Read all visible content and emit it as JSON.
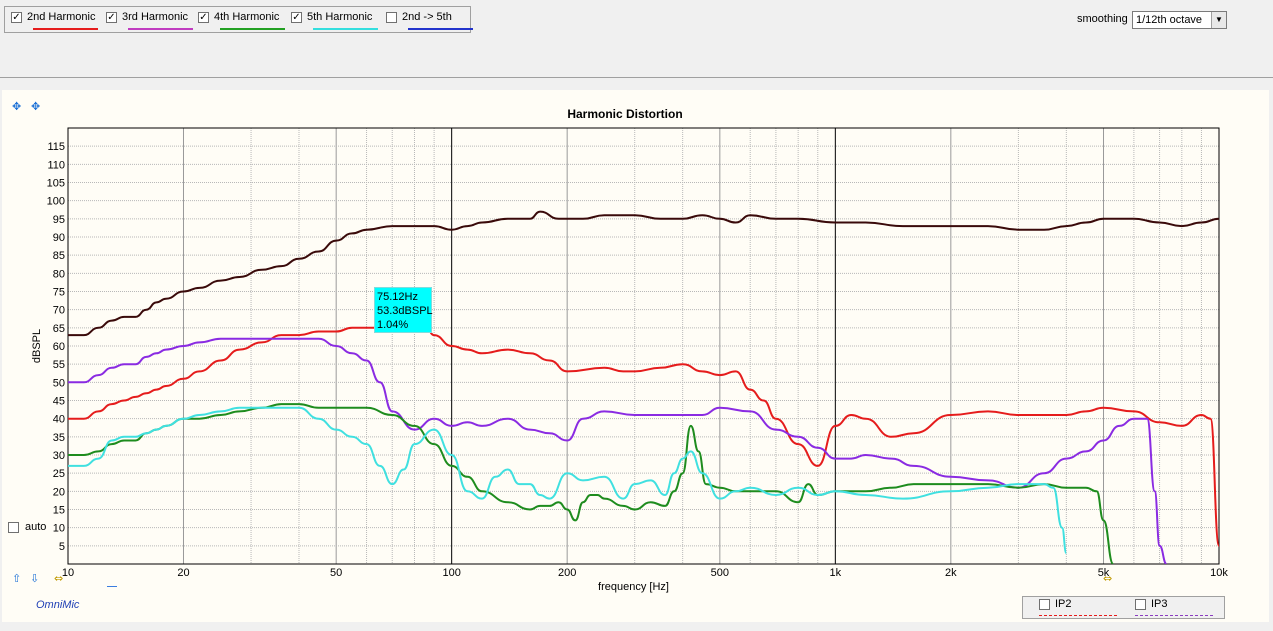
{
  "legend": [
    {
      "label": "2nd Harmonic",
      "checked": true,
      "color": "#e51c1c"
    },
    {
      "label": "3rd Harmonic",
      "checked": true,
      "color": "#c03cc0"
    },
    {
      "label": "4th Harmonic",
      "checked": true,
      "color": "#22a022"
    },
    {
      "label": "5th Harmonic",
      "checked": true,
      "color": "#33dede"
    },
    {
      "label": "2nd -> 5th",
      "checked": false,
      "color": "#2233cc"
    }
  ],
  "smoothing": {
    "label": "smoothing",
    "value": "1/12th octave"
  },
  "auto": {
    "label": "auto",
    "checked": false
  },
  "brand": "OmniMic",
  "ip": [
    {
      "label": "IP2",
      "checked": false,
      "color": "#e51c1c"
    },
    {
      "label": "IP3",
      "checked": false,
      "color": "#8a3cc0"
    }
  ],
  "tooltip": {
    "freq": "75.12Hz",
    "level": "53.3dBSPL",
    "pct": "1.04%"
  },
  "icons": {
    "top_left": [
      "expand-icon",
      "fit-icon"
    ],
    "bottom_left": [
      "up-arrow-icon",
      "down-arrow-icon",
      "left-right-icon"
    ],
    "bottom_right": "left-right-icon"
  },
  "chart_data": {
    "type": "line",
    "title": "Harmonic Distortion",
    "xlabel": "frequency [Hz]",
    "ylabel": "dBSPL",
    "xscale": "log",
    "xlim": [
      10,
      10000
    ],
    "ylim": [
      0,
      120
    ],
    "xticks": [
      {
        "v": 10,
        "t": "10"
      },
      {
        "v": 20,
        "t": "20"
      },
      {
        "v": 50,
        "t": "50"
      },
      {
        "v": 100,
        "t": "100"
      },
      {
        "v": 200,
        "t": "200"
      },
      {
        "v": 500,
        "t": "500"
      },
      {
        "v": 1000,
        "t": "1k"
      },
      {
        "v": 2000,
        "t": "2k"
      },
      {
        "v": 5000,
        "t": "5k"
      },
      {
        "v": 10000,
        "t": "10k"
      }
    ],
    "yticks": [
      5,
      10,
      15,
      20,
      25,
      30,
      35,
      40,
      45,
      50,
      55,
      60,
      65,
      70,
      75,
      80,
      85,
      90,
      95,
      100,
      105,
      110,
      115
    ],
    "grid": true,
    "series": [
      {
        "key": "fundamental",
        "color": "#3a0a0a",
        "x": [
          10,
          11,
          12,
          13,
          14,
          15,
          16,
          17,
          18,
          20,
          22,
          25,
          28,
          32,
          36,
          40,
          45,
          50,
          55,
          60,
          70,
          80,
          90,
          100,
          110,
          120,
          140,
          160,
          170,
          190,
          200,
          220,
          250,
          280,
          300,
          350,
          400,
          450,
          500,
          550,
          600,
          700,
          800,
          1000,
          1200,
          1500,
          2000,
          2500,
          3000,
          3500,
          4000,
          4500,
          5000,
          6000,
          7000,
          8000,
          9000,
          10000
        ],
        "y": [
          63,
          63,
          65,
          67,
          68,
          68,
          70,
          72,
          73,
          75,
          76,
          78,
          79,
          81,
          82,
          84,
          86,
          89,
          91,
          92,
          93,
          93,
          93,
          92,
          93,
          94,
          95,
          95,
          97,
          95,
          95,
          95,
          96,
          96,
          96,
          95,
          95,
          96,
          95,
          94,
          96,
          95,
          95,
          94,
          94,
          93,
          93,
          93,
          92,
          92,
          93,
          94,
          95,
          95,
          94,
          93,
          94,
          95
        ]
      },
      {
        "key": "h2",
        "color": "#e51c1c",
        "x": [
          10,
          11,
          12,
          13,
          14,
          15,
          16,
          17,
          18,
          20,
          22,
          25,
          28,
          32,
          36,
          40,
          45,
          50,
          55,
          60,
          70,
          80,
          85,
          90,
          100,
          110,
          120,
          140,
          160,
          180,
          200,
          250,
          280,
          300,
          350,
          400,
          450,
          500,
          550,
          600,
          650,
          700,
          800,
          900,
          1000,
          1100,
          1200,
          1400,
          1600,
          2000,
          2500,
          3000,
          3500,
          4000,
          4500,
          5000,
          6000,
          7000,
          8000,
          9000,
          9500,
          10000
        ],
        "y": [
          40,
          40,
          42,
          44,
          45,
          46,
          47,
          48,
          49,
          51,
          53,
          56,
          59,
          61,
          63,
          63,
          64,
          64,
          65,
          65,
          65,
          64,
          66,
          63,
          60,
          59,
          58,
          59,
          58,
          56,
          53,
          54,
          53,
          53,
          54,
          55,
          53,
          52,
          53,
          48,
          45,
          40,
          33,
          27,
          38,
          41,
          40,
          35,
          36,
          41,
          42,
          41,
          41,
          41,
          42,
          43,
          42,
          39,
          38,
          41,
          40,
          5
        ]
      },
      {
        "key": "h3",
        "color": "#8a2be2",
        "x": [
          10,
          11,
          12,
          13,
          14,
          15,
          16,
          17,
          18,
          20,
          22,
          25,
          28,
          32,
          36,
          40,
          45,
          50,
          55,
          60,
          65,
          70,
          80,
          90,
          100,
          110,
          120,
          140,
          160,
          180,
          200,
          220,
          250,
          300,
          350,
          400,
          450,
          500,
          600,
          700,
          800,
          900,
          1000,
          1100,
          1200,
          1400,
          1600,
          2000,
          2500,
          3000,
          3500,
          4000,
          4500,
          5000,
          5500,
          6000,
          6500,
          6800,
          7000,
          7300
        ],
        "y": [
          50,
          50,
          52,
          54,
          55,
          55,
          57,
          58,
          59,
          60,
          61,
          62,
          62,
          62,
          62,
          62,
          62,
          60,
          58,
          56,
          50,
          42,
          37,
          40,
          38,
          39,
          38,
          40,
          37,
          36,
          34,
          40,
          42,
          41,
          41,
          41,
          41,
          43,
          42,
          37,
          35,
          32,
          29,
          29,
          30,
          29,
          27,
          24,
          23,
          21,
          25,
          29,
          31,
          34,
          38,
          40,
          40,
          20,
          5,
          0
        ]
      },
      {
        "key": "h4",
        "color": "#1e8c1e",
        "x": [
          10,
          11,
          12,
          13,
          14,
          15,
          16,
          17,
          18,
          20,
          22,
          25,
          28,
          32,
          36,
          40,
          45,
          50,
          60,
          70,
          80,
          90,
          100,
          110,
          120,
          140,
          160,
          170,
          180,
          190,
          200,
          210,
          220,
          230,
          240,
          250,
          280,
          300,
          330,
          360,
          380,
          400,
          420,
          440,
          460,
          500,
          550,
          600,
          700,
          800,
          850,
          900,
          1000,
          1100,
          1200,
          1400,
          1600,
          2000,
          2500,
          3000,
          3500,
          4000,
          4500,
          4800,
          5000,
          5300
        ],
        "y": [
          30,
          30,
          31,
          33,
          34,
          34,
          36,
          37,
          38,
          40,
          40,
          41,
          42,
          43,
          44,
          44,
          43,
          43,
          43,
          41,
          38,
          33,
          27,
          24,
          20,
          17,
          15,
          16,
          16,
          17,
          15,
          12,
          17,
          19,
          19,
          18,
          16,
          15,
          17,
          16,
          20,
          25,
          38,
          31,
          22,
          21,
          20,
          20,
          20,
          17,
          22,
          19,
          20,
          20,
          20,
          21,
          22,
          22,
          22,
          21,
          22,
          21,
          21,
          20,
          12,
          0
        ]
      },
      {
        "key": "h5",
        "color": "#40e0e0",
        "x": [
          10,
          11,
          12,
          13,
          14,
          15,
          16,
          17,
          18,
          20,
          22,
          25,
          28,
          32,
          36,
          40,
          45,
          50,
          55,
          60,
          65,
          70,
          75,
          80,
          90,
          100,
          110,
          120,
          130,
          140,
          150,
          160,
          170,
          180,
          200,
          220,
          250,
          280,
          300,
          330,
          360,
          380,
          400,
          420,
          450,
          500,
          550,
          600,
          700,
          800,
          900,
          1000,
          1200,
          1500,
          2000,
          2500,
          3000,
          3500,
          3700,
          3900,
          4000
        ],
        "y": [
          27,
          27,
          29,
          34,
          35,
          35,
          36,
          37,
          38,
          40,
          41,
          42,
          43,
          43,
          43,
          43,
          40,
          37,
          35,
          33,
          27,
          22,
          26,
          33,
          37,
          30,
          20,
          18,
          24,
          26,
          22,
          22,
          19,
          18,
          25,
          23,
          24,
          18,
          22,
          23,
          19,
          25,
          29,
          31,
          25,
          18,
          20,
          21,
          19,
          21,
          19,
          20,
          19,
          18,
          20,
          21,
          22,
          22,
          21,
          10,
          3
        ]
      }
    ]
  }
}
